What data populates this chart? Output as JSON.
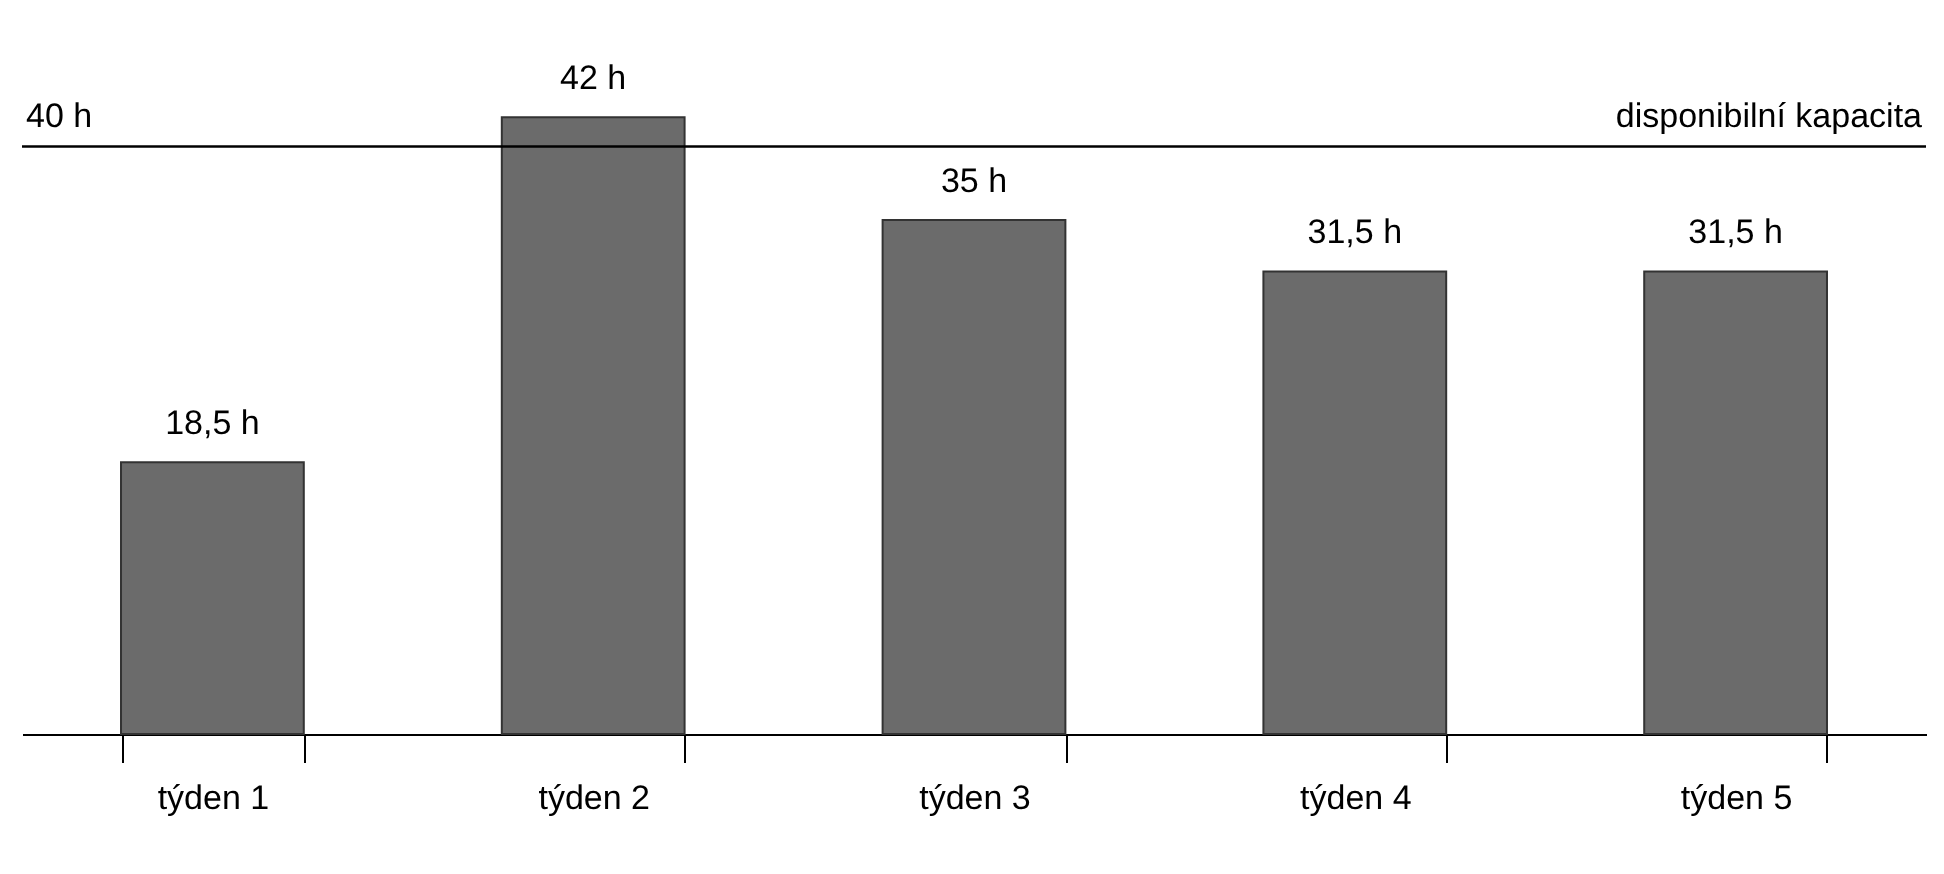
{
  "chart_data": {
    "type": "bar",
    "categories": [
      "týden 1",
      "týden 2",
      "týden 3",
      "týden 4",
      "týden 5"
    ],
    "values": [
      18.5,
      42,
      35,
      31.5,
      31.5
    ],
    "value_labels": [
      "18,5 h",
      "42 h",
      "35 h",
      "31,5 h",
      "31,5 h"
    ],
    "color": "#6b6b6b",
    "ref_lines": [
      {
        "axis": "y",
        "value": 40,
        "label": "disponibilní kapacita",
        "color": "#000000"
      }
    ],
    "annotations": [
      {
        "text": "40 h",
        "y": 40
      }
    ],
    "grid": false
  }
}
